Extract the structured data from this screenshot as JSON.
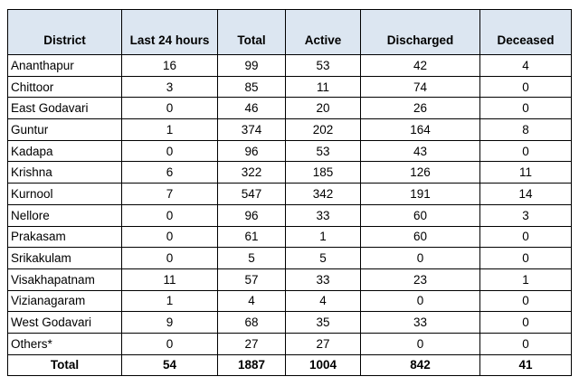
{
  "table": {
    "header": [
      "District",
      "Last 24 hours",
      "Total",
      "Active",
      "Discharged",
      "Deceased"
    ],
    "rows": [
      [
        "Ananthapur",
        16,
        99,
        53,
        42,
        4
      ],
      [
        "Chittoor",
        3,
        85,
        11,
        74,
        0
      ],
      [
        "East Godavari",
        0,
        46,
        20,
        26,
        0
      ],
      [
        "Guntur",
        1,
        374,
        202,
        164,
        8
      ],
      [
        "Kadapa",
        0,
        96,
        53,
        43,
        0
      ],
      [
        "Krishna",
        6,
        322,
        185,
        126,
        11
      ],
      [
        "Kurnool",
        7,
        547,
        342,
        191,
        14
      ],
      [
        "Nellore",
        0,
        96,
        33,
        60,
        3
      ],
      [
        "Prakasam",
        0,
        61,
        1,
        60,
        0
      ],
      [
        "Srikakulam",
        0,
        5,
        5,
        0,
        0
      ],
      [
        "Visakhapatnam",
        11,
        57,
        33,
        23,
        1
      ],
      [
        "Vizianagaram",
        1,
        4,
        4,
        0,
        0
      ],
      [
        "West Godavari",
        9,
        68,
        35,
        33,
        0
      ],
      [
        "Others*",
        0,
        27,
        27,
        0,
        0
      ]
    ],
    "total": [
      "Total",
      54,
      1887,
      1004,
      842,
      41
    ]
  }
}
